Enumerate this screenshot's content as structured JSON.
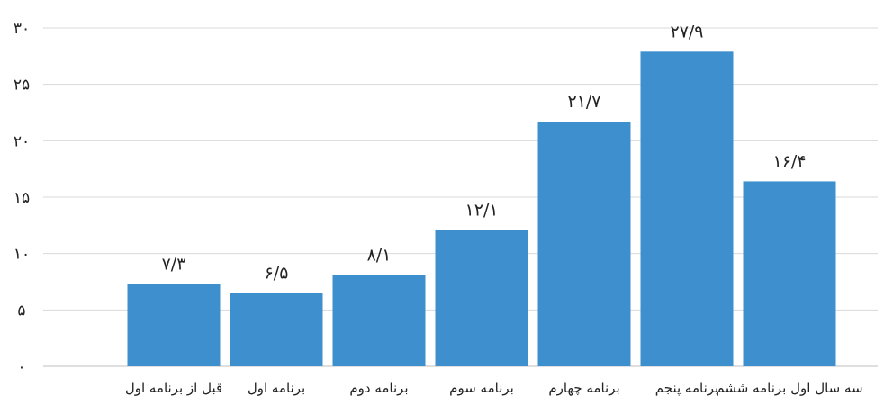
{
  "chart_data": {
    "type": "bar",
    "categories": [
      "قبل از برنامه اول",
      "برنامه اول",
      "برنامه دوم",
      "برنامه سوم",
      "برنامه چهارم",
      "برنامه پنجم",
      "سه سال اول برنامه ششم"
    ],
    "values": [
      7.3,
      6.5,
      8.1,
      12.1,
      21.7,
      27.9,
      16.4
    ],
    "data_labels": [
      "۷/۳",
      "۶/۵",
      "۸/۱",
      "۱۲/۱",
      "۲۱/۷",
      "۲۷/۹",
      "۱۶/۴"
    ],
    "ylim": [
      0,
      30
    ],
    "yticks": [
      0,
      5,
      10,
      15,
      20,
      25,
      30
    ],
    "ytick_labels": [
      "۰",
      "۵",
      "۱۰",
      "۱۵",
      "۲۰",
      "۲۵",
      "۳۰"
    ],
    "title": "",
    "xlabel": "",
    "ylabel": "",
    "grid": true,
    "legend": "none",
    "bar_color": "#3d8fce"
  }
}
